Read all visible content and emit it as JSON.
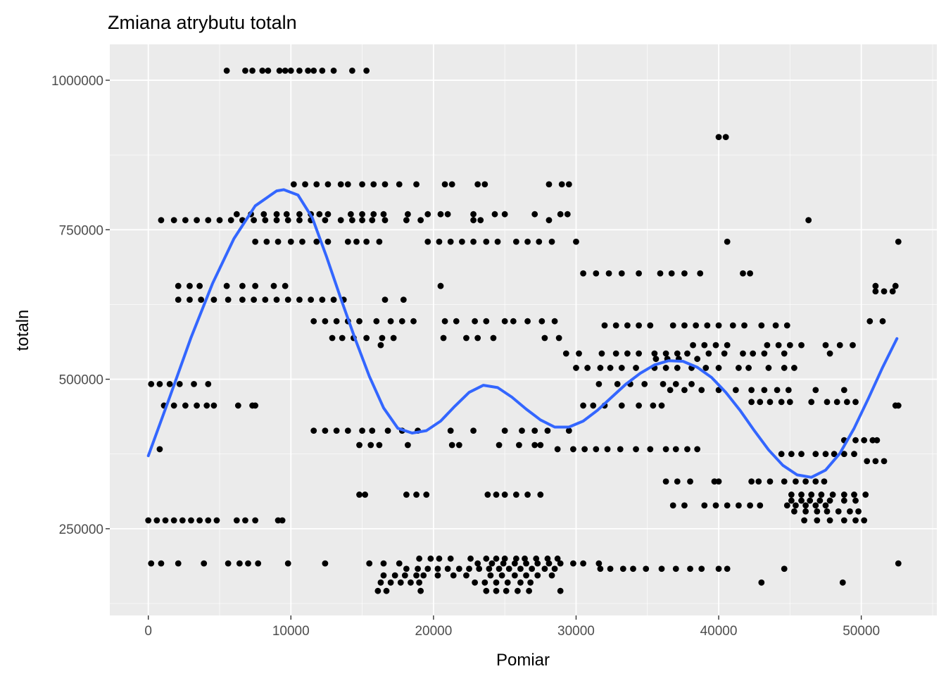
{
  "chart_data": {
    "type": "scatter",
    "title": "Zmiana atrybutu totaln",
    "xlabel": "Pomiar",
    "ylabel": "totaln",
    "xlim": [
      -2700,
      55300
    ],
    "ylim": [
      105000,
      1060000
    ],
    "x_ticks": [
      0,
      10000,
      20000,
      30000,
      40000,
      50000
    ],
    "x_tick_labels": [
      "0",
      "10000",
      "20000",
      "30000",
      "40000",
      "50000"
    ],
    "y_ticks": [
      250000,
      500000,
      750000,
      1000000
    ],
    "y_tick_labels": [
      "250000",
      "500000",
      "750000",
      "1000000"
    ],
    "grid": true,
    "colors": {
      "panel": "#ebebeb",
      "grid_major": "#ffffff",
      "points": "#000000",
      "smooth": "#3366ff"
    },
    "point_segments": [
      {
        "y": 1016000,
        "x": [
          5500,
          6800,
          7300,
          8000,
          8400,
          9200,
          9600,
          10000,
          10600,
          11200,
          11600,
          12200,
          13000,
          14300,
          15300
        ]
      },
      {
        "y": 905000,
        "x": [
          40000,
          40500
        ]
      },
      {
        "y": 826000,
        "x": [
          10200,
          11000,
          11800,
          12600,
          13500,
          14000,
          15000,
          15800,
          16600,
          17600,
          18800,
          20800,
          21300,
          23100,
          23600,
          28100,
          29000,
          29500
        ]
      },
      {
        "y": 776000,
        "x": [
          6200,
          7200,
          8100,
          9000,
          9700,
          10600,
          11400,
          12000,
          12600,
          14200,
          15000,
          15800,
          16500,
          18200,
          19600,
          20500,
          21000,
          22800,
          24300,
          25000,
          27100,
          28900,
          29400
        ]
      },
      {
        "y": 766000,
        "x": [
          900,
          1800,
          2600,
          3400,
          4200,
          5000,
          5800,
          6600,
          7400,
          8200,
          9000,
          9800,
          10600,
          11400,
          12400,
          13500,
          14300,
          15000,
          15700,
          16600,
          18100,
          19100,
          22800,
          23300,
          28100,
          46300
        ]
      },
      {
        "y": 730000,
        "x": [
          7500,
          8300,
          9100,
          10000,
          10800,
          11800,
          12600,
          14000,
          14600,
          15300,
          16200,
          19600,
          20400,
          21200,
          22000,
          22800,
          23700,
          24500,
          25800,
          26600,
          27400,
          28300,
          30000,
          40600,
          52600
        ]
      },
      {
        "y": 677000,
        "x": [
          30500,
          31400,
          32300,
          33200,
          34400,
          35900,
          36700,
          37600,
          38700,
          41700,
          42200
        ]
      },
      {
        "y": 656000,
        "x": [
          2100,
          2900,
          3600,
          5500,
          6600,
          7500,
          8800,
          9600,
          20500,
          51000,
          52400
        ]
      },
      {
        "y": 647000,
        "x": [
          51000,
          51600,
          52200
        ]
      },
      {
        "y": 633000,
        "x": [
          2100,
          2900,
          3700,
          4600,
          5600,
          6600,
          7400,
          8200,
          9000,
          9800,
          10600,
          11400,
          12200,
          13000,
          13700,
          16600,
          17900
        ]
      },
      {
        "y": 597000,
        "x": [
          11600,
          12400,
          13200,
          14000,
          14800,
          16000,
          17000,
          17800,
          18600,
          20800,
          21600,
          22900,
          23700,
          25000,
          25600,
          26600,
          27600,
          28500,
          50600,
          51500
        ]
      },
      {
        "y": 590000,
        "x": [
          32000,
          32800,
          33600,
          34400,
          35200,
          36800,
          37600,
          38400,
          39200,
          40000,
          41000,
          41800,
          43000,
          44000,
          44800
        ]
      },
      {
        "y": 569000,
        "x": [
          12900,
          13600,
          14400,
          15300,
          16400,
          17200,
          20700,
          22300,
          23100,
          24200,
          27800,
          28800
        ]
      },
      {
        "y": 557000,
        "x": [
          16300,
          38200,
          39000,
          39800,
          40600,
          43400,
          44200,
          45000,
          45800,
          47500,
          48500,
          49400
        ]
      },
      {
        "y": 543000,
        "x": [
          29300,
          30200,
          31800,
          32800,
          33600,
          34400,
          35500,
          36300,
          37100,
          37800,
          39300,
          40400,
          41700,
          42400,
          43200,
          44600,
          47800
        ]
      },
      {
        "y": 534000,
        "x": [
          35600,
          36400,
          37200,
          38500
        ]
      },
      {
        "y": 519000,
        "x": [
          30000,
          30800,
          31700,
          32400,
          33200,
          34200,
          35500,
          36300,
          37100,
          38100,
          39100,
          40000,
          41400,
          42100,
          43500,
          44600,
          45300
        ]
      },
      {
        "y": 492000,
        "x": [
          200,
          800,
          1500,
          2200,
          3200,
          4200,
          31600,
          32900,
          33800,
          34800,
          36100,
          37000,
          38100
        ]
      },
      {
        "y": 482000,
        "x": [
          36600,
          37600,
          38800,
          40000,
          41200,
          42300,
          43200,
          44100,
          44900,
          46800,
          48800
        ]
      },
      {
        "y": 462000,
        "x": [
          42300,
          42900,
          43600,
          44400,
          45000,
          46500,
          47600,
          48300,
          49000,
          49600
        ]
      },
      {
        "y": 456000,
        "x": [
          1100,
          1800,
          2600,
          3400,
          4100,
          4600,
          6300,
          7300,
          7500,
          30500,
          31200,
          32000,
          33200,
          34400,
          35400,
          36000,
          52400,
          52600
        ]
      },
      {
        "y": 414000,
        "x": [
          11600,
          12400,
          13200,
          14000,
          15000,
          15700,
          16800,
          17800,
          18900,
          21200,
          22800,
          25000,
          26200,
          27100,
          28000,
          29500
        ]
      },
      {
        "y": 398000,
        "x": [
          48800,
          49600,
          50200,
          50800,
          51100
        ]
      },
      {
        "y": 390000,
        "x": [
          14800,
          15600,
          16200,
          18200,
          21300,
          21800,
          24600,
          26000,
          27100,
          27500
        ]
      },
      {
        "y": 383000,
        "x": [
          800,
          28700,
          29800,
          30600,
          31400,
          32200,
          33100,
          34200,
          35200,
          36300,
          37000,
          37800,
          38500
        ]
      },
      {
        "y": 375000,
        "x": [
          44400,
          45100,
          45800,
          46800,
          47500,
          48100,
          48800,
          49500
        ]
      },
      {
        "y": 363000,
        "x": [
          50400,
          51000,
          51600
        ]
      },
      {
        "y": 329000,
        "x": [
          36300,
          37100,
          38000,
          39700,
          40000,
          42300,
          42800,
          43600,
          44600,
          45400,
          46100,
          46800,
          47400
        ]
      },
      {
        "y": 307000,
        "x": [
          14800,
          15200,
          18100,
          18800,
          19500,
          23800,
          24400,
          25000,
          25800,
          26600,
          27500,
          45100,
          45800,
          46500,
          47200,
          48000,
          48800,
          49500,
          50300
        ]
      },
      {
        "y": 297000,
        "x": [
          45100,
          45800,
          46400,
          47100,
          47800,
          48800,
          49600
        ]
      },
      {
        "y": 289000,
        "x": [
          36800,
          37600,
          39000,
          39800,
          40600,
          41400,
          42200,
          42900,
          44800,
          45400,
          46100,
          46800,
          47500
        ]
      },
      {
        "y": 279000,
        "x": [
          45300,
          46100,
          46900,
          47600,
          48400,
          49200,
          49800
        ]
      },
      {
        "y": 264000,
        "x": [
          0,
          600,
          1200,
          1800,
          2400,
          3000,
          3600,
          4200,
          4800,
          6200,
          6800,
          7500,
          9100,
          9400,
          46000,
          46900,
          47800,
          48800,
          49600,
          50200
        ]
      },
      {
        "y": 200000,
        "x": [
          19000,
          19800,
          20400,
          21200,
          22600,
          23700,
          24400,
          25000,
          25800,
          26400,
          27200,
          28000,
          28700
        ]
      },
      {
        "y": 192000,
        "x": [
          200,
          900,
          2100,
          3900,
          5600,
          6400,
          7000,
          7700,
          9800,
          12400,
          15500,
          16500,
          17600,
          23100,
          24100,
          24900,
          25700,
          26500,
          27300,
          28100,
          28900,
          29800,
          30500,
          31600,
          52600
        ]
      },
      {
        "y": 183000,
        "x": [
          18100,
          18900,
          19600,
          20300,
          21000,
          21800,
          22500,
          23200,
          23900,
          24600,
          25300,
          26100,
          26900,
          27800,
          28500,
          31700,
          32400,
          33300,
          34000,
          34900,
          36000,
          37000,
          38000,
          38800,
          40000,
          40600,
          44600
        ]
      },
      {
        "y": 172000,
        "x": [
          16500,
          17300,
          18000,
          18800,
          19300,
          20300,
          21400,
          22300,
          24000,
          24800,
          25700,
          26500,
          27300,
          28300
        ]
      },
      {
        "y": 160000,
        "x": [
          16300,
          17000,
          17700,
          18400,
          19000,
          22900,
          23600,
          24400,
          25200,
          26100,
          26800,
          43000,
          48700
        ]
      },
      {
        "y": 146000,
        "x": [
          16100,
          16700,
          19100,
          23700,
          24400,
          25100,
          25900,
          26700,
          28900
        ]
      }
    ],
    "smooth_curve": {
      "x": [
        0,
        1500,
        3000,
        4500,
        6000,
        7500,
        9000,
        9500,
        10500,
        11500,
        12500,
        13500,
        14500,
        15500,
        16500,
        17500,
        18500,
        19500,
        20500,
        21500,
        22500,
        23500,
        24500,
        25500,
        26500,
        27500,
        28500,
        29500,
        30500,
        31500,
        32500,
        33500,
        34500,
        35500,
        36500,
        37500,
        38500,
        39500,
        40500,
        41500,
        42500,
        43500,
        44500,
        45500,
        46500,
        47500,
        48500,
        49500,
        50500,
        51500,
        52500
      ],
      "y": [
        372000,
        470000,
        570000,
        660000,
        735000,
        790000,
        815000,
        817000,
        808000,
        770000,
        705000,
        635000,
        568000,
        505000,
        452000,
        418000,
        410000,
        414000,
        430000,
        455000,
        478000,
        490000,
        486000,
        470000,
        450000,
        432000,
        420000,
        420000,
        430000,
        448000,
        470000,
        492000,
        510000,
        524000,
        531000,
        530000,
        520000,
        503000,
        478000,
        448000,
        414000,
        382000,
        356000,
        340000,
        336000,
        348000,
        376000,
        418000,
        468000,
        520000,
        568000
      ]
    }
  }
}
